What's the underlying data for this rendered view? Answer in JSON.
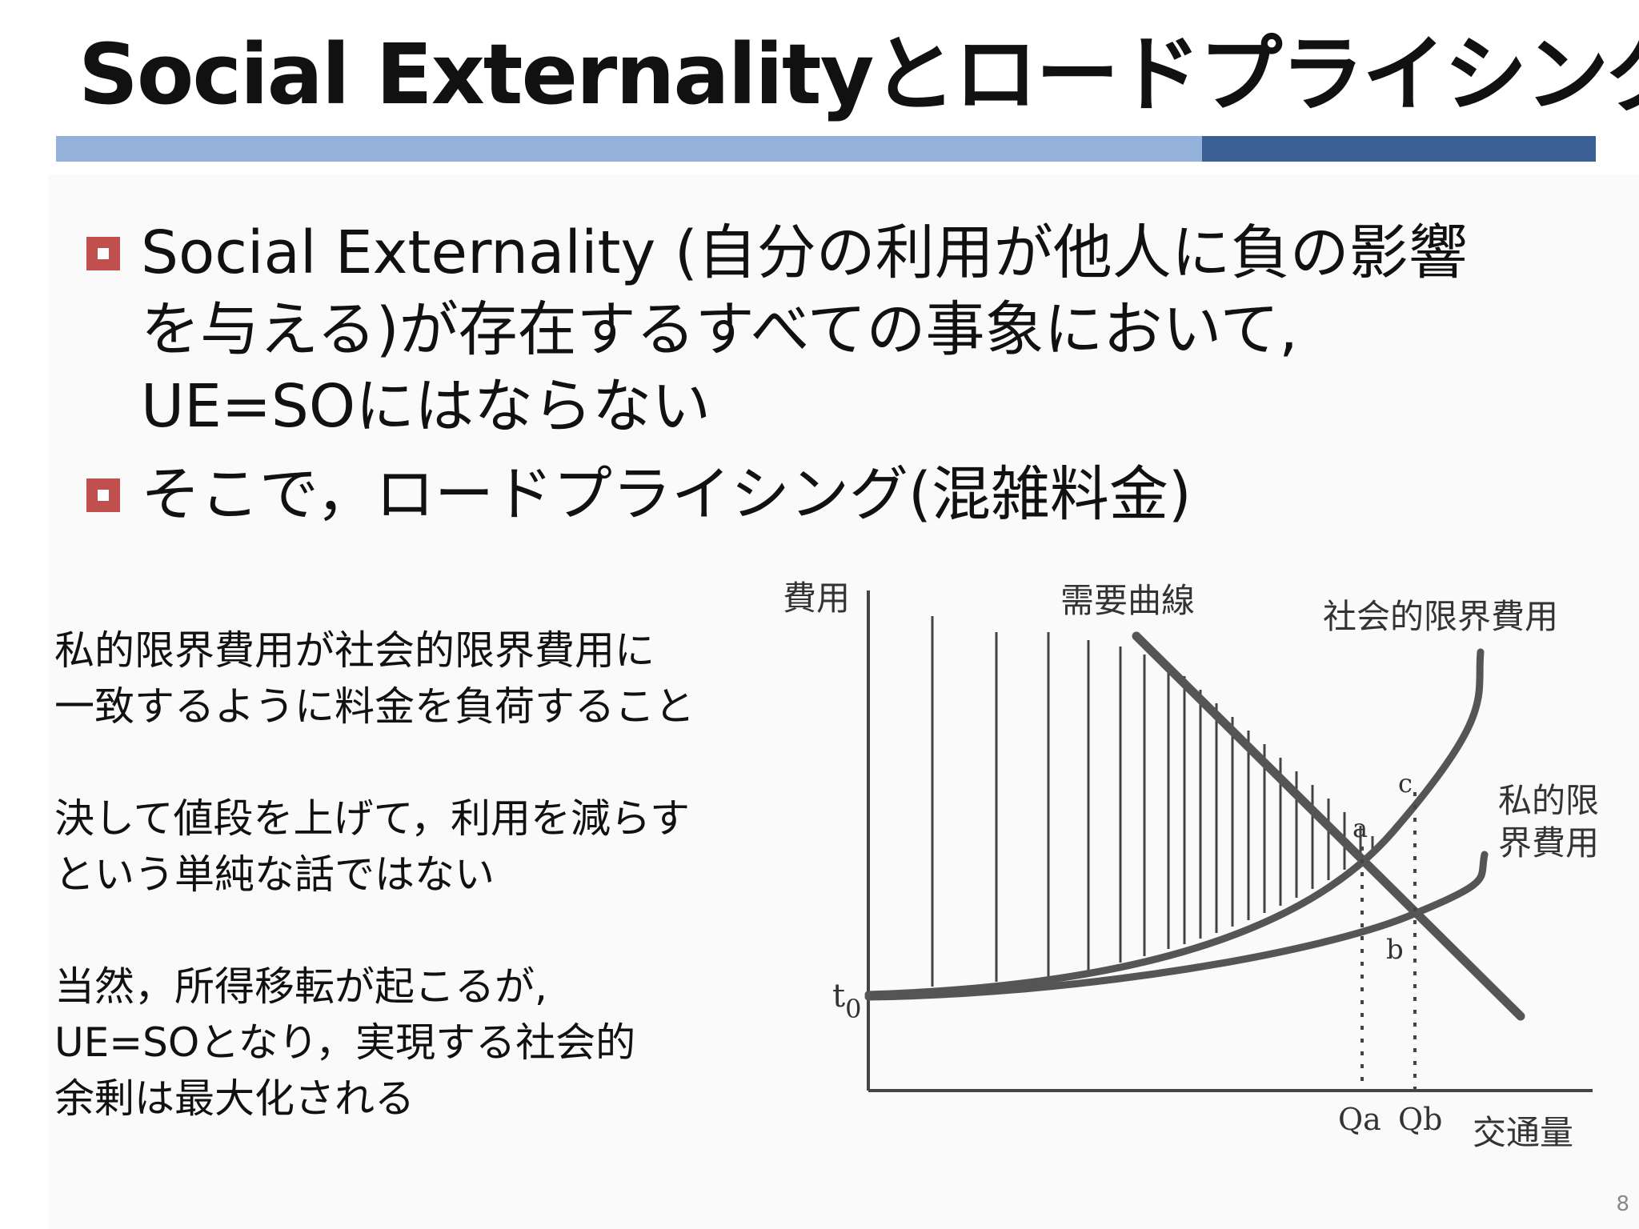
{
  "slide": {
    "title": "Social Externalityとロードプライシング",
    "page_number": "8"
  },
  "bullets": [
    "Social Externality (自分の利用が他人に負の影響\nを与える)が存在するすべての事象において,\nUE=SOにはならない",
    "そこで，ロードプライシング(混雑料金)"
  ],
  "notes": [
    "私的限界費用が社会的限界費用に\n一致するように料金を負荷すること",
    "決して値段を上げて，利用を減らす\nという単純な話ではない",
    "当然，所得移転が起こるが,\nUE=SOとなり，実現する社会的\n余剰は最大化される"
  ],
  "graph": {
    "y_axis_label": "費用",
    "x_axis_label": "交通量",
    "demand_label": "需要曲線",
    "social_mc_label": "社会的限界費用",
    "private_mc_label_1": "私的限",
    "private_mc_label_2": "界費用",
    "t0_label": "t",
    "t0_sub": "0",
    "point_a": "a",
    "point_b": "b",
    "point_c": "c",
    "qa_label": "Qa",
    "qb_label": "Qb"
  }
}
